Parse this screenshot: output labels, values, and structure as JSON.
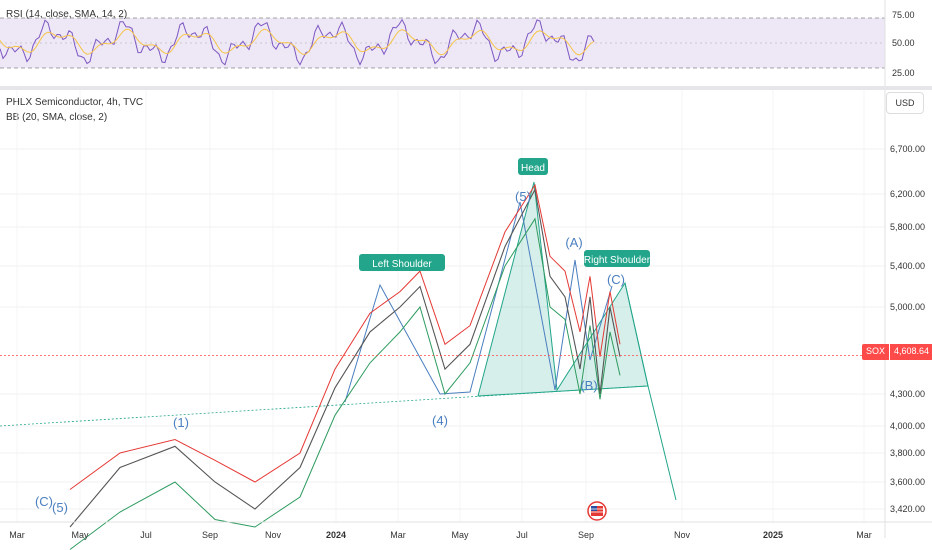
{
  "rsi_pane": {
    "legend": "RSI (14, close, SMA, 14, 2)",
    "ticks": [
      "75.00",
      "50.00",
      "25.00"
    ],
    "levels": [
      75,
      50,
      25
    ],
    "upper_band": 70,
    "lower_band": 30,
    "line_color": "#7e57c2",
    "sma_color": "#f7c54a",
    "band_fill": "#ede7f6"
  },
  "price_pane": {
    "title": "PHLX Semiconductor, 4h, TVC",
    "bb_legend": "BB (20, SMA, close, 2)",
    "currency": "USD",
    "price_ticks": [
      "6,700.00",
      "6,200.00",
      "5,800.00",
      "5,400.00",
      "5,000.00",
      "4,300.00",
      "4,000.00",
      "3,800.00",
      "3,600.00",
      "3,420.00"
    ],
    "tick_values": [
      6700,
      6200,
      5800,
      5400,
      5000,
      4300,
      4000,
      3800,
      3600,
      3420
    ],
    "last_symbol": "SOX",
    "last_price": "4,608.64",
    "last_price_value": 4608.64,
    "last_price_color": "#ff4a4a"
  },
  "chart_data": {
    "type": "line",
    "x_ticks": [
      "Mar",
      "May",
      "Jul",
      "Sep",
      "Nov",
      "2024",
      "Mar",
      "May",
      "Jul",
      "Sep",
      "Nov",
      "2025",
      "Mar"
    ],
    "bold_ticks": [
      "2024",
      "2025"
    ],
    "wave_labels": [
      "(C)",
      "(5)",
      "(1)",
      "(4)",
      "(5)",
      "(A)",
      "(B)",
      "(C)"
    ],
    "pattern_labels": [
      "Left Shoulder",
      "Head",
      "Right Shoulder"
    ],
    "label_color": "#22a58a",
    "wave_color": "#4a7fc0",
    "series": [
      {
        "values": [
          3300,
          3700,
          3850,
          3600,
          3420,
          3700,
          4350,
          4800,
          5000,
          5200,
          4500,
          4700,
          5600,
          6250,
          5300,
          5100,
          4500,
          5100,
          4300,
          5000,
          4600
        ]
      },
      {
        "values": [
          3550,
          3800,
          3900,
          3750,
          3600,
          3800,
          4500,
          4950,
          5150,
          5350,
          4700,
          4850,
          5750,
          6300,
          5500,
          5350,
          4800,
          5300,
          4600,
          5150,
          4700
        ]
      },
      {
        "values": [
          3150,
          3400,
          3600,
          3350,
          3300,
          3500,
          4100,
          4550,
          4800,
          5000,
          4300,
          4550,
          5400,
          5900,
          5000,
          4900,
          4300,
          4850,
          4250,
          4800,
          4450
        ]
      }
    ]
  }
}
